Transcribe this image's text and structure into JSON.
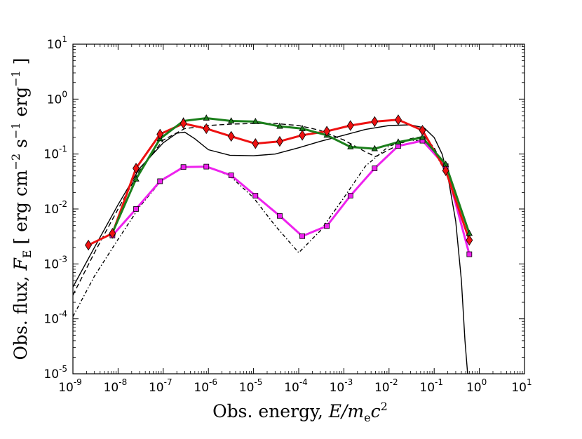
{
  "chart_data": {
    "type": "line",
    "xscale": "log",
    "yscale": "log",
    "xlim_exp": [
      -9,
      1
    ],
    "ylim_exp": [
      -5,
      1
    ],
    "xlabel": {
      "text": "Obs. energy, ",
      "math_var": "E",
      "math_rest": "/m",
      "math_sub": "e",
      "math_c": "c",
      "math_sup": "2"
    },
    "ylabel": {
      "text": "Obs. flux, ",
      "math_var": "F",
      "math_sub": "E",
      "unit_open": " [ erg cm",
      "unit_exp1": "−2",
      "unit_s": " s",
      "unit_exp2": "−1",
      "unit_erg": "  erg",
      "unit_exp3": "−1",
      "unit_close": " ]"
    },
    "x_ticks": [
      {
        "base": "10",
        "exp": "-9"
      },
      {
        "base": "10",
        "exp": "-8"
      },
      {
        "base": "10",
        "exp": "-7"
      },
      {
        "base": "10",
        "exp": "-6"
      },
      {
        "base": "10",
        "exp": "-5"
      },
      {
        "base": "10",
        "exp": "-4"
      },
      {
        "base": "10",
        "exp": "-3"
      },
      {
        "base": "10",
        "exp": "-2"
      },
      {
        "base": "10",
        "exp": "-1"
      },
      {
        "base": "10",
        "exp": "0"
      },
      {
        "base": "10",
        "exp": "1"
      }
    ],
    "y_ticks": [
      {
        "base": "10",
        "exp": "-5"
      },
      {
        "base": "10",
        "exp": "-4"
      },
      {
        "base": "10",
        "exp": "-3"
      },
      {
        "base": "10",
        "exp": "-2"
      },
      {
        "base": "10",
        "exp": "-1"
      },
      {
        "base": "10",
        "exp": "0"
      },
      {
        "base": "10",
        "exp": "1"
      }
    ],
    "series": [
      {
        "name": "red-diamonds",
        "color": "#ee1111",
        "marker": "diamond",
        "style": "solid-thick",
        "x": [
          2.2e-09,
          7.5e-09,
          2.5e-08,
          8.5e-08,
          2.8e-07,
          9e-07,
          3.2e-06,
          1.1e-05,
          3.8e-05,
          0.00012,
          0.00042,
          0.0014,
          0.0048,
          0.016,
          0.055,
          0.18,
          0.6
        ],
        "y": [
          0.0022,
          0.0036,
          0.055,
          0.23,
          0.36,
          0.29,
          0.21,
          0.155,
          0.17,
          0.22,
          0.26,
          0.33,
          0.39,
          0.42,
          0.27,
          0.05,
          0.0027
        ]
      },
      {
        "name": "green-triangles",
        "color": "#1b7f1b",
        "marker": "triangle",
        "style": "solid-thick",
        "x": [
          7.5e-09,
          2.5e-08,
          8.5e-08,
          2.8e-07,
          9e-07,
          3.2e-06,
          1.1e-05,
          3.8e-05,
          0.00012,
          0.00042,
          0.0014,
          0.0048,
          0.016,
          0.055,
          0.18,
          0.6
        ],
        "y": [
          0.0037,
          0.035,
          0.19,
          0.4,
          0.45,
          0.4,
          0.39,
          0.32,
          0.29,
          0.22,
          0.135,
          0.125,
          0.165,
          0.2,
          0.065,
          0.0036
        ]
      },
      {
        "name": "magenta-squares",
        "color": "#ee22ee",
        "marker": "square",
        "style": "solid-thick",
        "x": [
          7.5e-09,
          2.5e-08,
          8.5e-08,
          2.8e-07,
          9e-07,
          3.2e-06,
          1.1e-05,
          3.8e-05,
          0.00012,
          0.00042,
          0.0014,
          0.0048,
          0.016,
          0.055,
          0.18,
          0.6
        ],
        "y": [
          0.0033,
          0.01,
          0.032,
          0.058,
          0.059,
          0.041,
          0.0175,
          0.0075,
          0.0032,
          0.0049,
          0.0175,
          0.055,
          0.14,
          0.175,
          0.06,
          0.0015
        ]
      },
      {
        "name": "black-solid",
        "color": "#000000",
        "style": "solid",
        "x": [
          1e-09,
          3e-09,
          1e-08,
          3e-08,
          1e-07,
          2e-07,
          3e-07,
          5e-07,
          1e-06,
          3e-06,
          1e-05,
          3e-05,
          0.0001,
          0.0003,
          0.001,
          0.003,
          0.01,
          0.03,
          0.06,
          0.1,
          0.15,
          0.2,
          0.3,
          0.4,
          0.48,
          0.55
        ],
        "y": [
          0.00038,
          0.002,
          0.012,
          0.055,
          0.16,
          0.24,
          0.25,
          0.19,
          0.12,
          0.095,
          0.093,
          0.1,
          0.13,
          0.17,
          0.22,
          0.28,
          0.33,
          0.34,
          0.3,
          0.2,
          0.1,
          0.04,
          0.006,
          0.0005,
          4e-05,
          1e-05
        ]
      },
      {
        "name": "black-dashed",
        "color": "#000000",
        "style": "dashed",
        "x": [
          1e-09,
          3e-09,
          1e-08,
          3e-08,
          1e-07,
          3e-07,
          1e-06,
          3e-06,
          1e-05,
          3e-05,
          0.0001,
          0.0003,
          0.001,
          0.003,
          0.005,
          0.01,
          0.03,
          0.06,
          0.1,
          0.2
        ],
        "y": [
          0.00027,
          0.0016,
          0.01,
          0.05,
          0.18,
          0.29,
          0.33,
          0.35,
          0.36,
          0.36,
          0.33,
          0.27,
          0.18,
          0.11,
          0.09,
          0.12,
          0.19,
          0.21,
          0.13,
          0.04
        ]
      },
      {
        "name": "black-dashdot",
        "color": "#000000",
        "style": "dashdot",
        "x": [
          1e-09,
          3e-09,
          1e-08,
          3e-08,
          1e-07,
          3e-07,
          1e-06,
          3e-06,
          1e-05,
          3e-05,
          0.0001,
          0.0003,
          0.001,
          0.003,
          0.01,
          0.03,
          0.06,
          0.1,
          0.2
        ],
        "y": [
          0.00011,
          0.0006,
          0.0028,
          0.011,
          0.036,
          0.058,
          0.058,
          0.04,
          0.016,
          0.005,
          0.0016,
          0.004,
          0.016,
          0.06,
          0.14,
          0.18,
          0.17,
          0.11,
          0.04
        ]
      }
    ]
  }
}
